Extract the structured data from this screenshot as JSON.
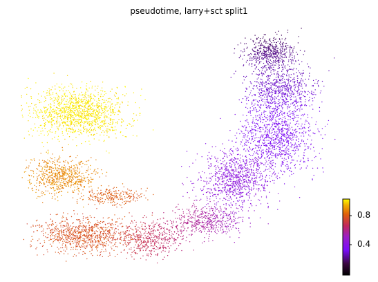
{
  "chart_data": {
    "type": "scatter",
    "title": "pseudotime, larry+sct split1",
    "xlabel": "",
    "ylabel": "",
    "grid": false,
    "axes_visible": false,
    "color_by": "pseudotime",
    "colormap": "gnuplot",
    "colorbar": {
      "location": "bottom-right",
      "range": [
        0.2,
        1.0
      ],
      "ticks": [
        0.4,
        0.8
      ],
      "tick_labels": [
        "0.4",
        "0.8"
      ]
    },
    "clusters": [
      {
        "region": "top-left ellipse",
        "pseudotime": 0.98,
        "color": "#ffff00"
      },
      {
        "region": "middle-left lobe",
        "pseudotime": 0.85,
        "color": "#e08a10"
      },
      {
        "region": "bottom-left band",
        "pseudotime": 0.72,
        "color": "#c24408"
      },
      {
        "region": "bottom-center bridge",
        "pseudotime": 0.55,
        "color": "#a8277a"
      },
      {
        "region": "right arm lower",
        "pseudotime": 0.35,
        "color": "#7a0dfa"
      },
      {
        "region": "right arm top",
        "pseudotime": 0.22,
        "color": "#1e0a20"
      }
    ]
  }
}
